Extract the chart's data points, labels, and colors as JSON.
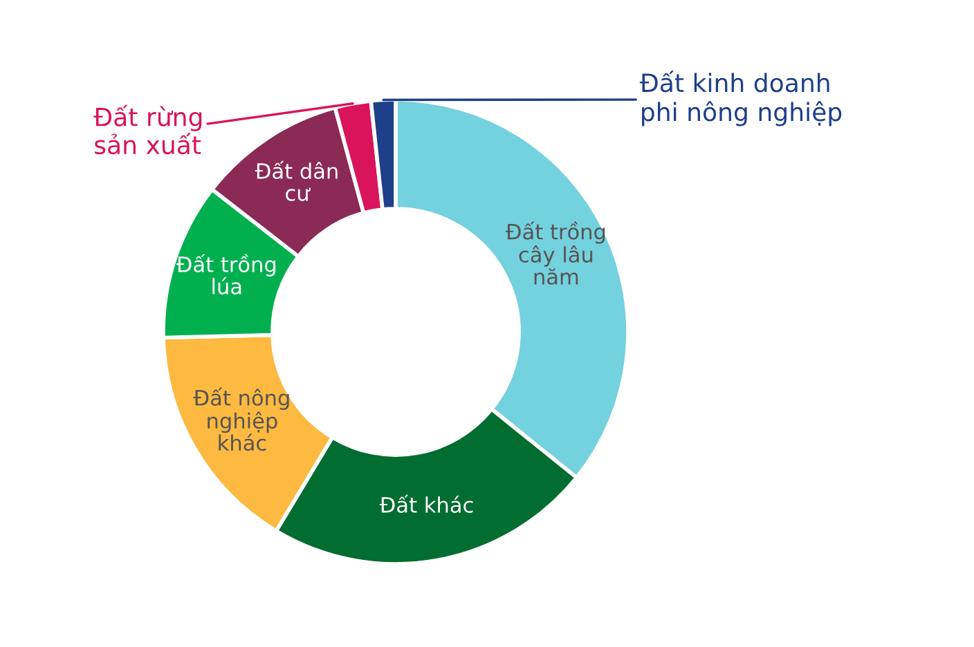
{
  "chart_data": {
    "type": "donut",
    "categories": [
      "Đất trồng\ncây lâu\nnăm",
      "Đất khác",
      "Đất nông\nnghiệp\nkhác",
      "Đất trồng\nlúa",
      "Đất dân\ncư",
      "Đất rừng\nsản xuất",
      "Đất kinh doanh\nphi nông nghiệp"
    ],
    "values": [
      35.8,
      22.8,
      16.0,
      10.9,
      10.3,
      2.5,
      1.7
    ],
    "colors": [
      "#74d1de",
      "#026d31",
      "#fdb940",
      "#00b04f",
      "#8b2a55",
      "#d9145b",
      "#1e3f8a"
    ],
    "legend": false
  }
}
